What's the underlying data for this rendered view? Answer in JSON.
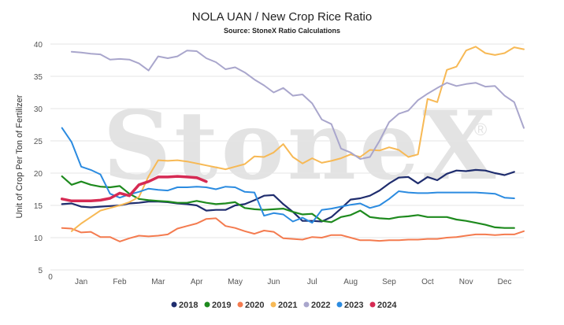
{
  "chart_data": {
    "type": "line",
    "title": "NOLA UAN / New Crop Rice Ratio",
    "subtitle": "Source: StoneX Ratio Calculations",
    "ylabel": "Unit of Crop Per Ton of Fertilizer",
    "xlabel": "",
    "watermark": "StoneX",
    "ylim": [
      5,
      40
    ],
    "yticks": [
      "5",
      "10",
      "15",
      "20",
      "25",
      "30",
      "35",
      "40"
    ],
    "ytick_values": [
      5,
      10,
      15,
      20,
      25,
      30,
      35,
      40
    ],
    "x_origin_label": "0",
    "xlim": [
      0,
      12.3
    ],
    "months": [
      "Jan",
      "Feb",
      "Mar",
      "Apr",
      "May",
      "Jun",
      "Jul",
      "Aug",
      "Sep",
      "Oct",
      "Nov",
      "Dec"
    ],
    "month_positions": [
      0.8,
      1.8,
      2.8,
      3.8,
      4.8,
      5.8,
      6.8,
      7.8,
      8.8,
      9.8,
      10.8,
      11.8
    ],
    "grid": true,
    "legend_position": "bottom",
    "series": [
      {
        "name": "2018",
        "color": "#1f2d6e",
        "width": 2.2,
        "x": [
          0.3,
          0.55,
          0.8,
          1.05,
          1.3,
          1.55,
          1.8,
          2.05,
          2.3,
          2.55,
          2.8,
          3.05,
          3.3,
          3.55,
          3.8,
          4.05,
          4.3,
          4.55,
          4.8,
          5.05,
          5.3,
          5.55,
          5.8,
          6.05,
          6.3,
          6.55,
          6.8,
          7.05,
          7.3,
          7.55,
          7.8,
          8.05,
          8.3,
          8.55,
          8.8,
          9.05,
          9.3,
          9.55,
          9.8,
          10.05,
          10.3,
          10.55,
          10.8,
          11.05,
          11.3,
          11.55,
          11.8,
          12.05
        ],
        "y": [
          15.2,
          15.3,
          14.8,
          14.7,
          14.8,
          14.9,
          15.0,
          15.3,
          15.4,
          15.6,
          15.6,
          15.5,
          15.3,
          15.2,
          15.0,
          14.2,
          14.3,
          14.3,
          15.0,
          15.2,
          15.8,
          16.5,
          16.6,
          15.2,
          14.0,
          12.6,
          12.6,
          12.5,
          13.2,
          14.5,
          15.9,
          16.1,
          16.5,
          17.3,
          18.4,
          19.3,
          19.4,
          18.4,
          19.4,
          18.9,
          19.9,
          20.4,
          20.3,
          20.5,
          20.4,
          20.0,
          19.7,
          20.2
        ]
      },
      {
        "name": "2019",
        "color": "#1e8a1e",
        "width": 2.2,
        "x": [
          0.3,
          0.55,
          0.8,
          1.05,
          1.3,
          1.55,
          1.8,
          2.05,
          2.3,
          2.55,
          2.8,
          3.05,
          3.3,
          3.55,
          3.8,
          4.05,
          4.3,
          4.55,
          4.8,
          5.05,
          5.3,
          5.55,
          5.8,
          6.05,
          6.3,
          6.55,
          6.8,
          7.05,
          7.3,
          7.55,
          7.8,
          8.05,
          8.3,
          8.55,
          8.8,
          9.05,
          9.3,
          9.55,
          9.8,
          10.05,
          10.3,
          10.55,
          10.8,
          11.05,
          11.3,
          11.55,
          11.8,
          12.05
        ],
        "y": [
          19.5,
          18.2,
          18.7,
          18.2,
          17.9,
          17.8,
          18.0,
          16.8,
          16.0,
          15.8,
          15.7,
          15.6,
          15.4,
          15.4,
          15.7,
          15.4,
          15.2,
          15.3,
          15.5,
          14.6,
          14.4,
          14.3,
          14.4,
          14.5,
          14.0,
          13.6,
          13.7,
          12.6,
          12.4,
          13.2,
          13.5,
          14.2,
          13.2,
          13.0,
          12.9,
          13.2,
          13.3,
          13.5,
          13.2,
          13.2,
          13.2,
          12.8,
          12.6,
          12.3,
          12.0,
          11.6,
          11.5,
          11.5
        ]
      },
      {
        "name": "2020",
        "color": "#f47b4f",
        "width": 2.0,
        "x": [
          0.3,
          0.55,
          0.8,
          1.05,
          1.3,
          1.55,
          1.8,
          2.05,
          2.3,
          2.55,
          2.8,
          3.05,
          3.3,
          3.55,
          3.8,
          4.05,
          4.3,
          4.55,
          4.8,
          5.05,
          5.3,
          5.55,
          5.8,
          6.05,
          6.3,
          6.55,
          6.8,
          7.05,
          7.3,
          7.55,
          7.8,
          8.05,
          8.3,
          8.55,
          8.8,
          9.05,
          9.3,
          9.55,
          9.8,
          10.05,
          10.3,
          10.55,
          10.8,
          11.05,
          11.3,
          11.55,
          11.8,
          12.05,
          12.3
        ],
        "y": [
          11.5,
          11.4,
          10.8,
          10.9,
          10.1,
          10.1,
          9.4,
          9.9,
          10.3,
          10.2,
          10.3,
          10.5,
          11.4,
          11.8,
          12.2,
          12.9,
          13.0,
          11.8,
          11.5,
          11.0,
          10.6,
          11.1,
          10.9,
          9.9,
          9.8,
          9.7,
          10.1,
          10.0,
          10.4,
          10.4,
          10.0,
          9.6,
          9.6,
          9.5,
          9.6,
          9.6,
          9.7,
          9.7,
          9.8,
          9.8,
          10.0,
          10.1,
          10.3,
          10.5,
          10.5,
          10.4,
          10.5,
          10.5,
          11.0
        ]
      },
      {
        "name": "2021",
        "color": "#f7b955",
        "width": 2.0,
        "x": [
          0.55,
          0.8,
          1.05,
          1.3,
          1.55,
          1.8,
          2.05,
          2.3,
          2.55,
          2.8,
          3.05,
          3.3,
          3.55,
          3.8,
          4.05,
          4.3,
          4.55,
          4.8,
          5.05,
          5.3,
          5.55,
          5.8,
          6.05,
          6.3,
          6.55,
          6.8,
          7.05,
          7.3,
          7.55,
          7.8,
          8.05,
          8.3,
          8.55,
          8.8,
          9.05,
          9.3,
          9.55,
          9.8,
          10.05,
          10.3,
          10.55,
          10.8,
          11.05,
          11.3,
          11.55,
          11.8,
          12.05,
          12.3
        ],
        "y": [
          11.0,
          12.2,
          13.2,
          14.2,
          14.6,
          15.0,
          15.5,
          16.3,
          19.5,
          22.0,
          21.9,
          22.0,
          21.8,
          21.5,
          21.2,
          20.9,
          20.6,
          21.0,
          21.4,
          22.6,
          22.5,
          23.2,
          24.5,
          22.5,
          21.5,
          22.3,
          21.6,
          21.9,
          22.3,
          22.9,
          22.5,
          23.6,
          23.5,
          24.0,
          23.6,
          22.5,
          22.9,
          31.5,
          31.0,
          36.0,
          36.5,
          39.0,
          39.6,
          38.6,
          38.3,
          38.6,
          39.5,
          39.2
        ]
      },
      {
        "name": "2022",
        "color": "#a9a6cc",
        "width": 2.0,
        "x": [
          0.55,
          0.8,
          1.05,
          1.3,
          1.55,
          1.8,
          2.05,
          2.3,
          2.55,
          2.8,
          3.05,
          3.3,
          3.55,
          3.8,
          4.05,
          4.3,
          4.55,
          4.8,
          5.05,
          5.3,
          5.55,
          5.8,
          6.05,
          6.3,
          6.55,
          6.8,
          7.05,
          7.3,
          7.55,
          7.8,
          8.05,
          8.3,
          8.55,
          8.8,
          9.05,
          9.3,
          9.55,
          9.8,
          10.05,
          10.3,
          10.55,
          10.8,
          11.05,
          11.3,
          11.55,
          11.8,
          12.05,
          12.3
        ],
        "y": [
          38.8,
          38.7,
          38.5,
          38.4,
          37.6,
          37.7,
          37.6,
          37.0,
          35.9,
          38.1,
          37.8,
          38.1,
          39.0,
          38.9,
          37.8,
          37.2,
          36.1,
          36.4,
          35.6,
          34.5,
          33.6,
          32.5,
          33.2,
          32.0,
          32.2,
          30.8,
          28.3,
          27.6,
          23.8,
          23.2,
          22.2,
          22.5,
          25.0,
          27.9,
          29.2,
          29.7,
          31.3,
          32.3,
          33.2,
          34.0,
          33.5,
          33.8,
          34.0,
          33.4,
          33.5,
          32.0,
          31.0,
          27.0
        ]
      },
      {
        "name": "2023",
        "color": "#2b8be0",
        "width": 2.0,
        "x": [
          0.3,
          0.55,
          0.8,
          1.05,
          1.3,
          1.55,
          1.8,
          2.05,
          2.3,
          2.55,
          2.8,
          3.05,
          3.3,
          3.55,
          3.8,
          4.05,
          4.3,
          4.55,
          4.8,
          5.05,
          5.3,
          5.55,
          5.8,
          6.05,
          6.3,
          6.55,
          6.8,
          7.05,
          7.3,
          7.55,
          7.8,
          8.05,
          8.3,
          8.55,
          8.8,
          9.05,
          9.3,
          9.55,
          9.8,
          10.05,
          10.3,
          10.55,
          10.8,
          11.05,
          11.3,
          11.55,
          11.8,
          12.05
        ],
        "y": [
          27.0,
          24.8,
          21.0,
          20.5,
          19.8,
          16.8,
          16.2,
          16.7,
          17.1,
          17.6,
          17.4,
          17.3,
          17.8,
          17.8,
          17.9,
          17.8,
          17.5,
          17.9,
          17.8,
          17.1,
          17.0,
          13.4,
          13.8,
          13.6,
          12.5,
          13.1,
          12.3,
          14.3,
          14.5,
          14.8,
          15.1,
          15.3,
          14.6,
          15.0,
          16.0,
          17.2,
          17.0,
          16.9,
          16.9,
          17.0,
          17.0,
          17.0,
          17.0,
          17.0,
          16.9,
          16.8,
          16.2,
          16.1
        ]
      },
      {
        "name": "2024",
        "color": "#d62a53",
        "width": 3.5,
        "x": [
          0.3,
          0.55,
          0.8,
          1.05,
          1.3,
          1.55,
          1.8,
          2.05,
          2.3,
          2.55,
          2.8,
          3.05,
          3.3,
          3.55,
          3.8,
          4.05
        ],
        "y": [
          16.0,
          15.7,
          15.7,
          15.7,
          15.8,
          16.1,
          16.9,
          16.5,
          18.2,
          18.7,
          19.4,
          19.4,
          19.5,
          19.4,
          19.3,
          18.7
        ]
      }
    ]
  }
}
